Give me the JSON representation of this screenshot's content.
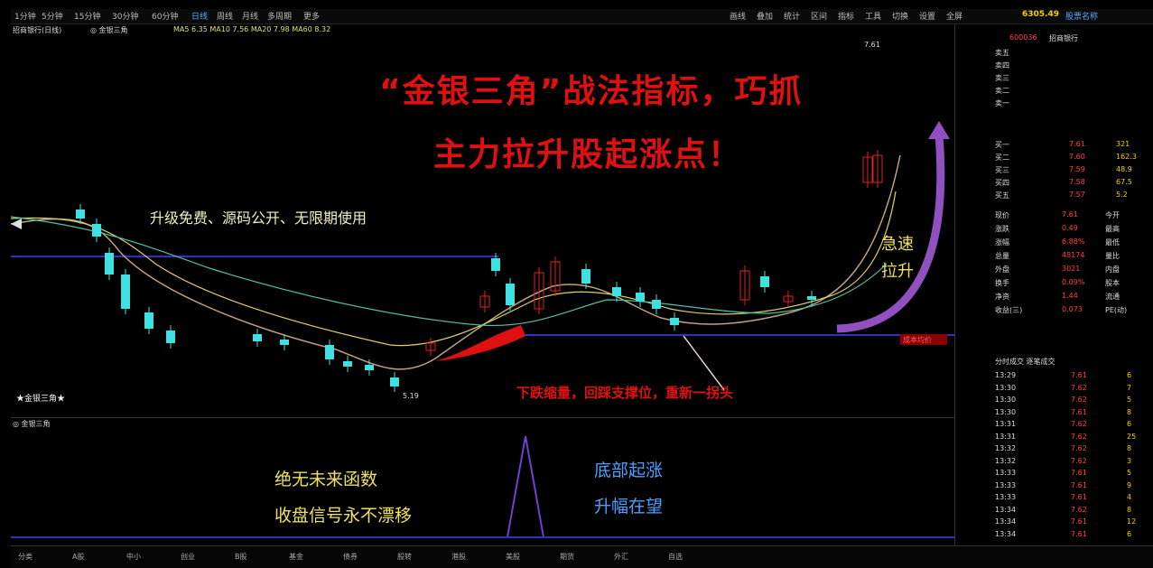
{
  "topbar": {
    "items": [
      "1分钟",
      "5分钟",
      "15分钟",
      "30分钟",
      "60分钟",
      "日线",
      "周线",
      "月线",
      "多周期",
      "更多"
    ],
    "right_items": [
      "画线",
      "叠加",
      "统计",
      "区间",
      "指标",
      "工具",
      "切换",
      "设置",
      "全屏"
    ],
    "quote_price": "6305.49",
    "quote_label": "股票名称"
  },
  "infobar": {
    "title": "招商银行(日线)",
    "indicator": "◎ 金银三角",
    "ma_text": "MA5 6.35  MA10 7.56  MA20 7.98  MA60 8.32"
  },
  "headline": {
    "line1": "“金银三角”战法指标，巧抓",
    "line2": "主力拉升股起涨点！"
  },
  "annotations": {
    "upgrade_text": "升级免费、源码公开、无限期使用",
    "rise_line1": "急速",
    "rise_line2": "拉升",
    "pullback_text": "下跌缩量，回踩支撑位，重新一拐头",
    "golden_marker": "★金银三角★",
    "sub_label": "◎ 金银三角",
    "sub_text1": "绝无未来函数",
    "sub_text2": "收盘信号永不漂移",
    "sub_text3": "底部起涨",
    "sub_text4": "升幅在望",
    "price_tag_high": "7.61",
    "price_tag_low": "5.19",
    "cost_tag": "成本均价"
  },
  "colors": {
    "candle_up": "#e02020",
    "candle_down": "#40e0e0",
    "headline": "#e01010",
    "annotation_yellow": "#f0e060",
    "annotation_blue": "#4aa0ff",
    "purple_arrow": "#9050c0"
  },
  "side_panel": {
    "title_code": "600036",
    "title_name": "招商银行",
    "sell_labels": [
      "卖五",
      "卖四",
      "卖三",
      "卖二",
      "卖一"
    ],
    "buy_labels": [
      "买一",
      "买二",
      "买三",
      "买四",
      "买五"
    ],
    "buy_prices": [
      "7.61",
      "7.60",
      "7.59",
      "7.58",
      "7.57"
    ],
    "buy_vols": [
      "321",
      "162.3",
      "48.9",
      "67.5",
      "5.2"
    ],
    "stats": [
      {
        "label": "现价",
        "value": "7.61",
        "extra": "今开"
      },
      {
        "label": "涨跌",
        "value": "0.49",
        "extra": "最高"
      },
      {
        "label": "涨幅",
        "value": "6.88%",
        "extra": "最低"
      },
      {
        "label": "总量",
        "value": "48174",
        "extra": "量比"
      },
      {
        "label": "外盘",
        "value": "3021",
        "extra": "内盘"
      },
      {
        "label": "换手",
        "value": "0.09%",
        "extra": "股本"
      },
      {
        "label": "净资",
        "value": "1.44",
        "extra": "流通"
      },
      {
        "label": "收益(三)",
        "value": "0.073",
        "extra": "PE(动)"
      }
    ],
    "ticks_header": "分时成交 逐笔成交",
    "ticks": [
      {
        "time": "13:29",
        "price": "7.61",
        "vol": "6"
      },
      {
        "time": "13:30",
        "price": "7.62",
        "vol": "7"
      },
      {
        "time": "13:30",
        "price": "7.62",
        "vol": "5"
      },
      {
        "time": "13:30",
        "price": "7.61",
        "vol": "8"
      },
      {
        "time": "13:31",
        "price": "7.62",
        "vol": "6"
      },
      {
        "time": "13:31",
        "price": "7.62",
        "vol": "25"
      },
      {
        "time": "13:32",
        "price": "7.62",
        "vol": "8"
      },
      {
        "time": "13:32",
        "price": "7.62",
        "vol": "3"
      },
      {
        "time": "13:33",
        "price": "7.61",
        "vol": "5"
      },
      {
        "time": "13:33",
        "price": "7.61",
        "vol": "9"
      },
      {
        "time": "13:33",
        "price": "7.61",
        "vol": "4"
      },
      {
        "time": "13:34",
        "price": "7.62",
        "vol": "8"
      },
      {
        "time": "13:34",
        "price": "7.61",
        "vol": "12"
      },
      {
        "time": "13:34",
        "price": "7.61",
        "vol": "6"
      }
    ]
  },
  "bottombar": {
    "tabs": [
      "分类",
      "A股",
      "中小",
      "创业",
      "B股",
      "基金",
      "债券",
      "股转",
      "港股",
      "美股",
      "期货",
      "外汇",
      "自选"
    ]
  }
}
